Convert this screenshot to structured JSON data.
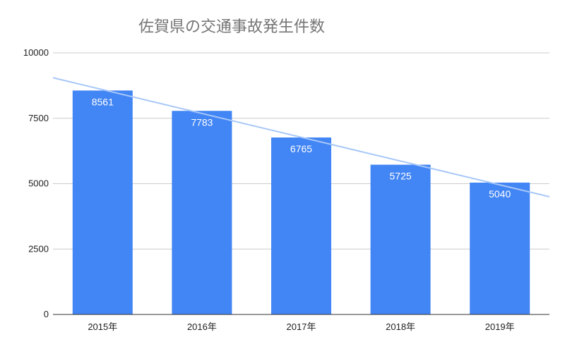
{
  "chart_data": {
    "type": "bar",
    "title": "佐賀県の交通事故発生件数",
    "xlabel": "",
    "ylabel": "",
    "categories": [
      "2015年",
      "2016年",
      "2017年",
      "2018年",
      "2019年"
    ],
    "values": [
      8561,
      7783,
      6765,
      5725,
      5040
    ],
    "ylim": [
      0,
      10000
    ],
    "yticks": [
      "0",
      "2500",
      "5000",
      "7500",
      "10000"
    ],
    "grid": true,
    "legend": "none",
    "trendline": "linear",
    "colors": {
      "bar": "#4285f4",
      "trendline": "#a7c7f9",
      "grid": "#cccccc",
      "axis": "#333333"
    }
  }
}
